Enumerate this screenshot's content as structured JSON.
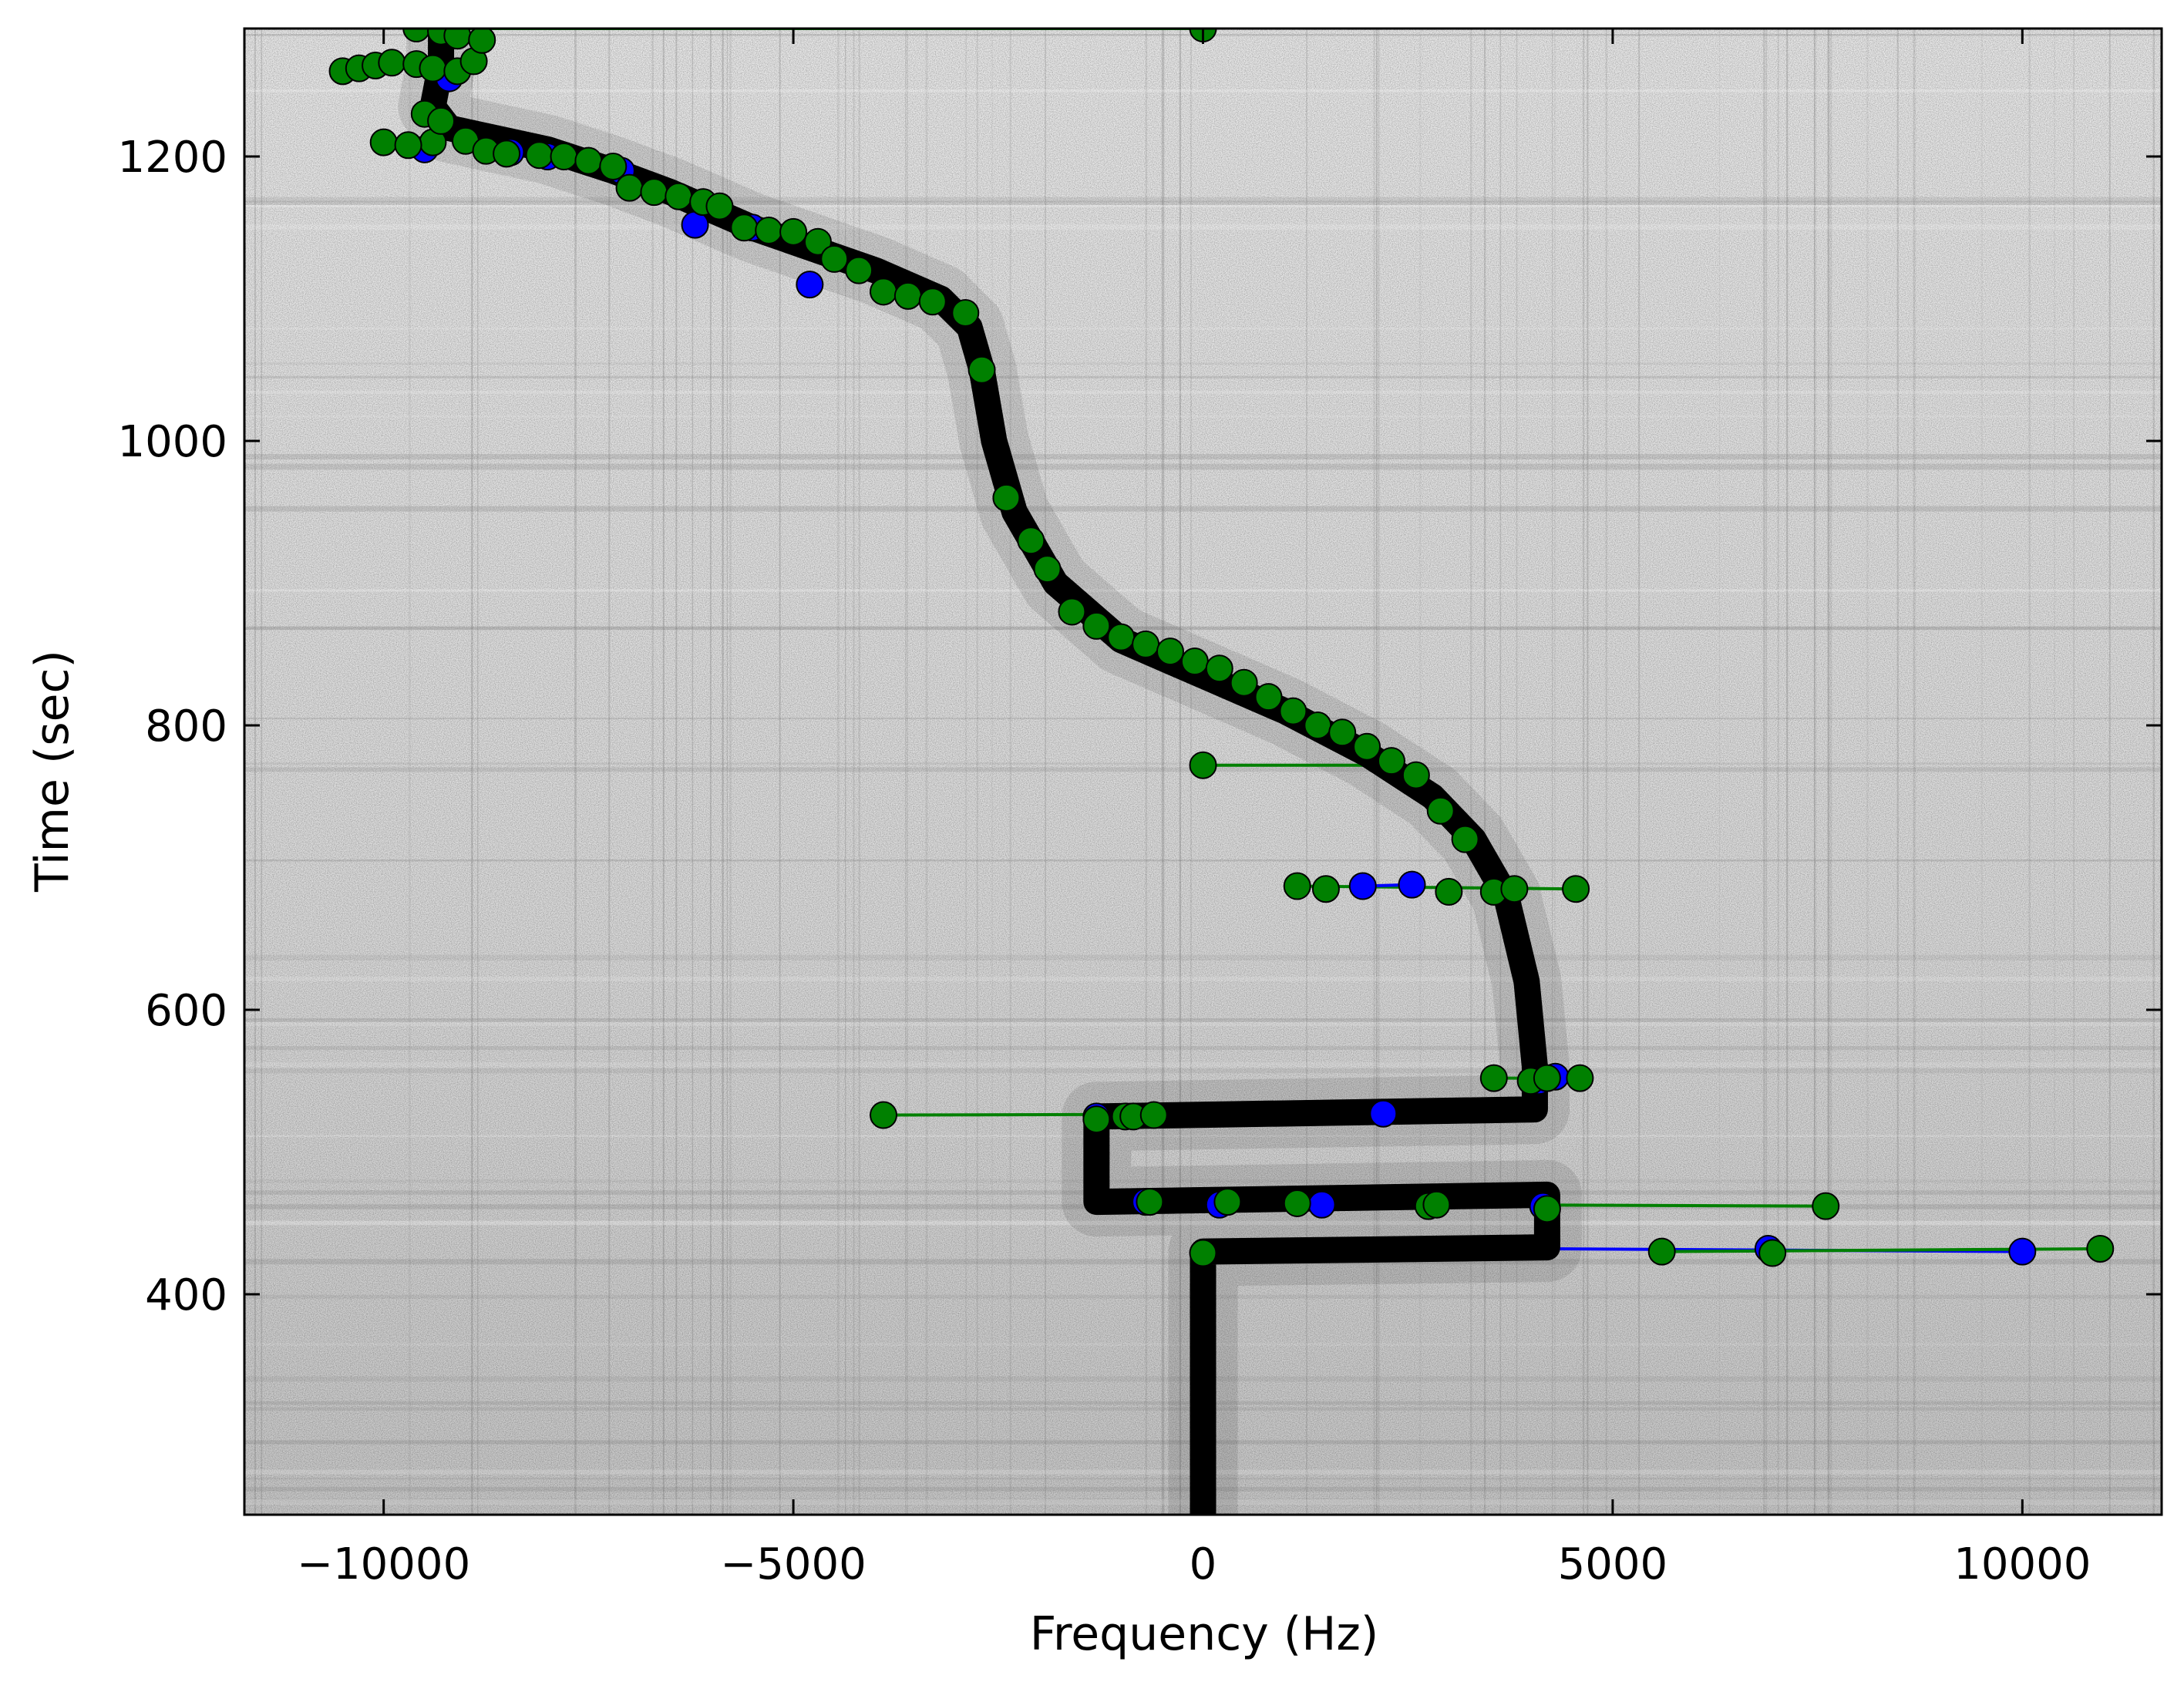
{
  "chart_data": {
    "type": "scatter",
    "background": "spectrogram (grayscale noise with a dark Doppler S-curve trace)",
    "xlabel": "Frequency (Hz)",
    "ylabel": "Time (sec)",
    "xlim": [
      -11700,
      11700
    ],
    "ylim": [
      245,
      1290
    ],
    "xticks": [
      -10000,
      -5000,
      0,
      5000,
      10000
    ],
    "xtick_labels": [
      "−10000",
      "−5000",
      "0",
      "5000",
      "10000"
    ],
    "yticks": [
      400,
      600,
      800,
      1000,
      1200
    ],
    "ytick_labels": [
      "400",
      "600",
      "800",
      "1000",
      "1200"
    ],
    "grid": false,
    "legend": "none",
    "colors": {
      "series_a": "#0000ff",
      "series_b": "#008000",
      "trace": "#000000"
    },
    "black_trace": [
      [
        0,
        245
      ],
      [
        0,
        430
      ],
      [
        4200,
        433
      ],
      [
        4200,
        470
      ],
      [
        -1300,
        465
      ],
      [
        -1300,
        525
      ],
      [
        4050,
        530
      ],
      [
        4050,
        560
      ],
      [
        3950,
        620
      ],
      [
        3700,
        680
      ],
      [
        3300,
        720
      ],
      [
        2800,
        750
      ],
      [
        2000,
        780
      ],
      [
        1000,
        810
      ],
      [
        0,
        835
      ],
      [
        -1000,
        860
      ],
      [
        -1800,
        900
      ],
      [
        -2300,
        950
      ],
      [
        -2550,
        1000
      ],
      [
        -2700,
        1050
      ],
      [
        -2850,
        1080
      ],
      [
        -3200,
        1100
      ],
      [
        -4000,
        1120
      ],
      [
        -5500,
        1150
      ],
      [
        -6500,
        1175
      ],
      [
        -7200,
        1190
      ],
      [
        -8000,
        1205
      ],
      [
        -9200,
        1220
      ],
      [
        -9400,
        1235
      ],
      [
        -9300,
        1265
      ],
      [
        -9300,
        1290
      ]
    ],
    "series": [
      {
        "color": "#0000ff",
        "x": [
          -9500,
          -8450,
          -6200,
          -5500,
          -7100,
          -4800,
          -8000,
          -9200,
          1950,
          2550,
          -1300,
          -700,
          200,
          1450,
          2200,
          4150,
          6900,
          10000,
          4300,
          4100
        ],
        "y": [
          1205,
          1203,
          1152,
          1150,
          1190,
          1110,
          1200,
          1255,
          687,
          688,
          525,
          465,
          463,
          463,
          527,
          462,
          432,
          430,
          553,
          550
        ]
      },
      {
        "color": "#008000",
        "x": [
          -10500,
          -10300,
          -10100,
          -9900,
          -9600,
          -9400,
          -9100,
          -8900,
          -9400,
          -9000,
          -8750,
          -10000,
          -9700,
          -9500,
          -9300,
          -8500,
          -8100,
          -7800,
          -7500,
          -7200,
          -7000,
          -6700,
          -6400,
          -6100,
          -5900,
          -5600,
          -5300,
          -5000,
          -4700,
          -4500,
          -4200,
          -3900,
          -3600,
          -3300,
          -2900,
          -2700,
          -2400,
          -2100,
          -1900,
          -1600,
          -1300,
          -1000,
          -700,
          -400,
          -100,
          200,
          500,
          800,
          1100,
          1400,
          1700,
          2000,
          2300,
          2600,
          2900,
          3200,
          -9600,
          -9300,
          -9100,
          -8800,
          0,
          0,
          1150,
          1500,
          3000,
          3550,
          3800,
          4550,
          3550,
          4000,
          4200,
          4600,
          -3900,
          -1300,
          -950,
          -850,
          -600,
          -650,
          300,
          1150,
          2750,
          2850,
          4200,
          7600,
          0,
          5600,
          6950,
          10950
        ],
        "y": [
          1260,
          1262,
          1264,
          1266,
          1265,
          1262,
          1260,
          1267,
          1210,
          1211,
          1204,
          1210,
          1208,
          1230,
          1225,
          1202,
          1201,
          1200,
          1197,
          1193,
          1178,
          1175,
          1172,
          1168,
          1165,
          1150,
          1148,
          1147,
          1140,
          1128,
          1120,
          1105,
          1102,
          1098,
          1090,
          1050,
          960,
          930,
          910,
          880,
          870,
          862,
          857,
          852,
          845,
          840,
          830,
          820,
          810,
          800,
          795,
          785,
          775,
          765,
          740,
          720,
          1290,
          1288,
          1285,
          1282,
          1290,
          772,
          687,
          685,
          683,
          683,
          685,
          685,
          552,
          550,
          552,
          552,
          526,
          523,
          525,
          525,
          526,
          465,
          465,
          464,
          462,
          463,
          460,
          462,
          429,
          430,
          429,
          432
        ]
      }
    ],
    "segments": [
      {
        "color": "#008000",
        "x1": -9300,
        "y1": 1290,
        "x2": 0,
        "y2": 1290
      },
      {
        "color": "#008000",
        "x1": 0,
        "y1": 772,
        "x2": 2300,
        "y2": 772
      },
      {
        "color": "#008000",
        "x1": 1150,
        "y1": 687,
        "x2": 4550,
        "y2": 685
      },
      {
        "color": "#0000ff",
        "x1": 1950,
        "y1": 687,
        "x2": 2550,
        "y2": 688
      },
      {
        "color": "#008000",
        "x1": 3550,
        "y1": 552,
        "x2": 4600,
        "y2": 552
      },
      {
        "color": "#008000",
        "x1": -3900,
        "y1": 526,
        "x2": 2200,
        "y2": 527
      },
      {
        "color": "#0000ff",
        "x1": 2200,
        "y1": 527,
        "x2": 4150,
        "y2": 530
      },
      {
        "color": "#008000",
        "x1": -1300,
        "y1": 466,
        "x2": 2750,
        "y2": 462
      },
      {
        "color": "#008000",
        "x1": 2850,
        "y1": 463,
        "x2": 7600,
        "y2": 462
      },
      {
        "color": "#008000",
        "x1": 0,
        "y1": 428,
        "x2": 4200,
        "y2": 430
      },
      {
        "color": "#0000ff",
        "x1": 4200,
        "y1": 432,
        "x2": 10000,
        "y2": 430
      },
      {
        "color": "#008000",
        "x1": 5600,
        "y1": 430,
        "x2": 10950,
        "y2": 432
      }
    ]
  }
}
